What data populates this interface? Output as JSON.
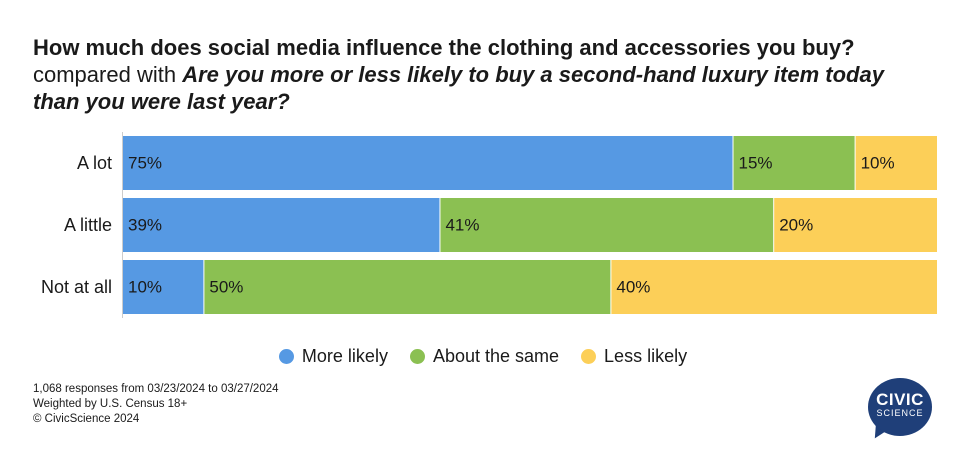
{
  "title": {
    "question1": "How much does social media influence the clothing and accessories you buy?",
    "comparison": "compared with",
    "question2": "Are you more or less likely to buy a second-hand luxury item today than you were last year?"
  },
  "chart_data": {
    "type": "bar",
    "orientation": "horizontal",
    "stacked": true,
    "percent_scale": true,
    "categories": [
      "A lot",
      "A little",
      "Not at all"
    ],
    "series": [
      {
        "name": "More likely",
        "color": "#5699e3",
        "values": [
          75,
          39,
          10
        ]
      },
      {
        "name": "About the same",
        "color": "#8bc052",
        "values": [
          15,
          41,
          50
        ]
      },
      {
        "name": "Less likely",
        "color": "#fccf58",
        "values": [
          10,
          20,
          40
        ]
      }
    ],
    "value_suffix": "%",
    "xlim": [
      0,
      100
    ],
    "legend": "bottom-center"
  },
  "footnote": {
    "line1": "1,068 responses from 03/23/2024 to 03/27/2024",
    "line2": "Weighted by U.S. Census 18+",
    "line3": "© CivicScience 2024"
  },
  "logo": {
    "line1": "CIVIC",
    "line2": "SCIENCE",
    "color": "#1f3f79"
  }
}
